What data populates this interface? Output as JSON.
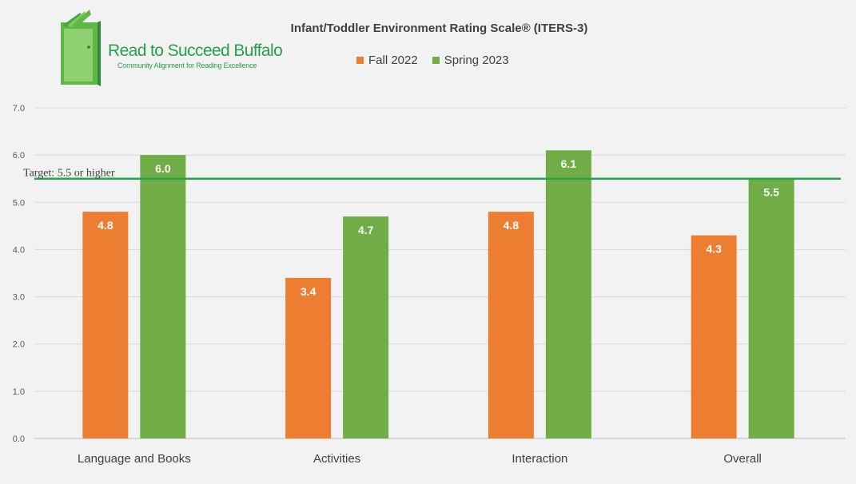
{
  "logo": {
    "name": "Read to Succeed Buffalo",
    "tagline": "Community Alignment for Reading Excellence"
  },
  "chart_data": {
    "type": "bar",
    "title": "Infant/Toddler Environment Rating Scale® (ITERS-3)",
    "categories": [
      "Language and Books",
      "Activities",
      "Interaction",
      "Overall"
    ],
    "series": [
      {
        "name": "Fall 2022",
        "values": [
          4.8,
          3.4,
          4.8,
          4.3
        ],
        "labels": [
          "4.8",
          "3.4",
          "4.8",
          "4.3"
        ],
        "color": "#ed7d31"
      },
      {
        "name": "Spring 2023",
        "values": [
          6.0,
          4.7,
          6.1,
          5.5
        ],
        "labels": [
          "6.0",
          "4.7",
          "6.1",
          "5.5"
        ],
        "color": "#70ad47"
      }
    ],
    "yticks": [
      "0.0",
      "1.0",
      "2.0",
      "3.0",
      "4.0",
      "5.0",
      "6.0",
      "7.0"
    ],
    "ylim": [
      0,
      7
    ],
    "grid": true,
    "legend_position": "top",
    "target": {
      "value": 5.5,
      "label": "Target: 5.5 or higher",
      "color": "#1fa84b"
    }
  }
}
